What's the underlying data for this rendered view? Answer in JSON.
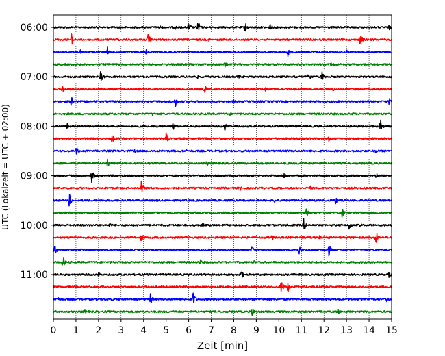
{
  "chart_data": {
    "type": "line",
    "title": "",
    "xlabel": "Zeit  [min]",
    "ylabel": "UTC (Lokalzeit = UTC + 02:00)",
    "xlim": [
      0,
      15
    ],
    "x_ticks": [
      "0",
      "1",
      "2",
      "3",
      "4",
      "5",
      "6",
      "7",
      "8",
      "9",
      "10",
      "11",
      "12",
      "13",
      "14",
      "15"
    ],
    "y_ticks": [
      "06:00",
      "07:00",
      "08:00",
      "09:00",
      "10:00",
      "11:00"
    ],
    "grid": "vertical dotted",
    "legend": "none",
    "line_colors": [
      "#000000",
      "#ff0000",
      "#0000ff",
      "#008000"
    ],
    "traces": [
      {
        "row": 0,
        "color": "#000000",
        "events": [
          {
            "t": 4.7,
            "a": 0.4
          },
          {
            "t": 5.4,
            "a": 0.3
          },
          {
            "t": 6.0,
            "a": 0.8
          },
          {
            "t": 6.4,
            "a": 1.0
          },
          {
            "t": 8.5,
            "a": 0.8
          },
          {
            "t": 9.6,
            "a": 0.6
          },
          {
            "t": 14.9,
            "a": 0.4
          }
        ]
      },
      {
        "row": 1,
        "color": "#ff0000",
        "events": [
          {
            "t": 0.8,
            "a": 0.9
          },
          {
            "t": 2.8,
            "a": 0.3
          },
          {
            "t": 4.2,
            "a": 0.9
          },
          {
            "t": 6.9,
            "a": 0.3
          },
          {
            "t": 13.6,
            "a": 1.0
          },
          {
            "t": 14.2,
            "a": 0.3
          }
        ]
      },
      {
        "row": 2,
        "color": "#0000ff",
        "events": [
          {
            "t": 1.2,
            "a": 0.3
          },
          {
            "t": 2.4,
            "a": 0.8
          },
          {
            "t": 4.1,
            "a": 0.4
          },
          {
            "t": 10.4,
            "a": 0.6
          },
          {
            "t": 13.0,
            "a": 0.4
          }
        ]
      },
      {
        "row": 3,
        "color": "#008000",
        "events": [
          {
            "t": 5.0,
            "a": 0.3
          },
          {
            "t": 7.6,
            "a": 0.6
          },
          {
            "t": 12.3,
            "a": 0.3
          }
        ]
      },
      {
        "row": 4,
        "color": "#000000",
        "events": [
          {
            "t": 2.1,
            "a": 0.9
          },
          {
            "t": 6.4,
            "a": 0.3
          },
          {
            "t": 8.2,
            "a": 0.3
          },
          {
            "t": 11.3,
            "a": 0.9
          },
          {
            "t": 11.9,
            "a": 0.9
          }
        ]
      },
      {
        "row": 5,
        "color": "#ff0000",
        "events": [
          {
            "t": 0.4,
            "a": 0.7
          },
          {
            "t": 6.7,
            "a": 0.8
          },
          {
            "t": 9.4,
            "a": 0.3
          },
          {
            "t": 12.4,
            "a": 0.3
          }
        ]
      },
      {
        "row": 6,
        "color": "#0000ff",
        "events": [
          {
            "t": 0.8,
            "a": 0.8
          },
          {
            "t": 5.4,
            "a": 0.9
          },
          {
            "t": 8.0,
            "a": 0.3
          },
          {
            "t": 14.9,
            "a": 0.6
          }
        ]
      },
      {
        "row": 7,
        "color": "#008000",
        "events": [
          {
            "t": 4.4,
            "a": 0.3
          },
          {
            "t": 7.8,
            "a": 0.3
          },
          {
            "t": 13.3,
            "a": 0.3
          }
        ]
      },
      {
        "row": 8,
        "color": "#000000",
        "events": [
          {
            "t": 0.6,
            "a": 0.5
          },
          {
            "t": 5.3,
            "a": 0.7
          },
          {
            "t": 7.6,
            "a": 0.7
          },
          {
            "t": 14.5,
            "a": 1.0
          }
        ]
      },
      {
        "row": 9,
        "color": "#ff0000",
        "events": [
          {
            "t": 2.6,
            "a": 0.8
          },
          {
            "t": 5.0,
            "a": 0.8
          },
          {
            "t": 12.2,
            "a": 0.5
          }
        ]
      },
      {
        "row": 10,
        "color": "#0000ff",
        "events": [
          {
            "t": 1.0,
            "a": 0.8
          },
          {
            "t": 3.6,
            "a": 0.3
          },
          {
            "t": 5.9,
            "a": 0.3
          },
          {
            "t": 14.3,
            "a": 0.4
          }
        ]
      },
      {
        "row": 11,
        "color": "#008000",
        "events": [
          {
            "t": 2.4,
            "a": 0.6
          },
          {
            "t": 4.2,
            "a": 0.3
          },
          {
            "t": 6.8,
            "a": 0.5
          },
          {
            "t": 11.8,
            "a": 0.3
          }
        ]
      },
      {
        "row": 12,
        "color": "#000000",
        "events": [
          {
            "t": 1.7,
            "a": 1.0
          },
          {
            "t": 10.2,
            "a": 0.6
          },
          {
            "t": 14.3,
            "a": 0.5
          }
        ]
      },
      {
        "row": 13,
        "color": "#ff0000",
        "events": [
          {
            "t": 3.9,
            "a": 1.0
          },
          {
            "t": 8.3,
            "a": 0.3
          },
          {
            "t": 11.4,
            "a": 0.3
          }
        ]
      },
      {
        "row": 14,
        "color": "#0000ff",
        "events": [
          {
            "t": 0.7,
            "a": 1.0
          },
          {
            "t": 9.8,
            "a": 0.4
          },
          {
            "t": 12.5,
            "a": 0.6
          }
        ]
      },
      {
        "row": 15,
        "color": "#008000",
        "events": [
          {
            "t": 11.2,
            "a": 0.8
          },
          {
            "t": 12.8,
            "a": 0.8
          }
        ]
      },
      {
        "row": 16,
        "color": "#000000",
        "events": [
          {
            "t": 2.5,
            "a": 0.4
          },
          {
            "t": 6.6,
            "a": 0.4
          },
          {
            "t": 11.1,
            "a": 0.9
          },
          {
            "t": 13.1,
            "a": 0.9
          },
          {
            "t": 13.6,
            "a": 0.4
          }
        ]
      },
      {
        "row": 17,
        "color": "#ff0000",
        "events": [
          {
            "t": 3.9,
            "a": 0.7
          },
          {
            "t": 9.7,
            "a": 0.4
          },
          {
            "t": 11.8,
            "a": 0.3
          },
          {
            "t": 14.3,
            "a": 1.0
          }
        ]
      },
      {
        "row": 18,
        "color": "#0000ff",
        "events": [
          {
            "t": 0.05,
            "a": 0.8
          },
          {
            "t": 8.8,
            "a": 0.6
          },
          {
            "t": 10.9,
            "a": 0.7
          },
          {
            "t": 12.2,
            "a": 1.0
          }
        ]
      },
      {
        "row": 19,
        "color": "#008000",
        "events": [
          {
            "t": 0.4,
            "a": 1.0
          },
          {
            "t": 6.5,
            "a": 0.4
          },
          {
            "t": 8.9,
            "a": 0.3
          }
        ]
      },
      {
        "row": 20,
        "color": "#000000",
        "events": [
          {
            "t": 2.0,
            "a": 0.4
          },
          {
            "t": 8.3,
            "a": 0.9
          },
          {
            "t": 14.9,
            "a": 0.6
          }
        ]
      },
      {
        "row": 21,
        "color": "#ff0000",
        "events": [
          {
            "t": 10.1,
            "a": 1.0
          },
          {
            "t": 10.4,
            "a": 0.8
          }
        ]
      },
      {
        "row": 22,
        "color": "#0000ff",
        "events": [
          {
            "t": 0.2,
            "a": 0.5
          },
          {
            "t": 4.3,
            "a": 0.8
          },
          {
            "t": 6.2,
            "a": 1.0
          },
          {
            "t": 14.8,
            "a": 0.6
          }
        ]
      },
      {
        "row": 23,
        "color": "#008000",
        "events": [
          {
            "t": 1.4,
            "a": 0.3
          },
          {
            "t": 8.8,
            "a": 0.8
          },
          {
            "t": 12.6,
            "a": 0.5
          }
        ]
      }
    ]
  }
}
